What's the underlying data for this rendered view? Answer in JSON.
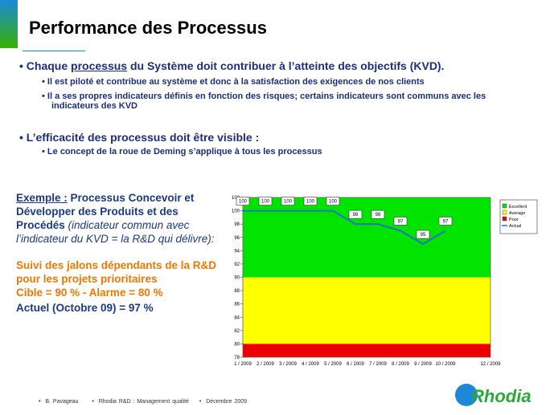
{
  "header": {
    "title": "Performance des Processus"
  },
  "bullets": [
    {
      "parts": [
        "Chaque ",
        "processus",
        " du Système doit contribuer à l’atteinte des objectifs (KVD)."
      ],
      "subs": [
        "Il est piloté et contribue au système et donc à la satisfaction des exigences de nos clients",
        "Il a ses propres indicateurs définis en fonction des risques; certains indicateurs sont communs avec les indicateurs des KVD"
      ]
    },
    {
      "parts": [
        "L’efficacité des processus doit être visible :"
      ],
      "subs": [
        "Le concept de la roue de Deming s’applique à tous les processus"
      ]
    }
  ],
  "example": {
    "label": "Exemple :",
    "title": " Processus Concevoir et Développer des Produits et des Procédés",
    "note": " (indicateur commun avec l’indicateur du KVD = la R&D qui délivre):",
    "follow": "Suivi des jalons dépendants de la R&D pour les projets prioritaires",
    "target": "Cible = 90 % - Alarme = 80 %",
    "actual": "Actuel (Octobre 09) = 97 %"
  },
  "footer": {
    "author": "B. Pavageau",
    "dept": "Rhodia R&D : Management qualité",
    "date": "Décembre 2009",
    "logo": "Rhodia"
  },
  "chart_data": {
    "type": "line",
    "categories": [
      "1 / 2009",
      "2 / 2009",
      "3 / 2009",
      "4 / 2009",
      "5 / 2009",
      "6 / 2009",
      "7 / 2009",
      "8 / 2009",
      "9 / 2009",
      "10 / 2009",
      null,
      "12 / 2009"
    ],
    "series": [
      {
        "name": "Actual",
        "color": "#2a6fc4",
        "values": [
          100,
          100,
          100,
          100,
          100,
          98,
          98,
          97,
          95,
          97,
          null,
          null
        ]
      }
    ],
    "bands": [
      {
        "name": "Excellent",
        "color": "#00e400",
        "from": 90,
        "to": 102
      },
      {
        "name": "Average",
        "color": "#ffff00",
        "from": 80,
        "to": 90
      },
      {
        "name": "Poor",
        "color": "#ee0000",
        "from": 78,
        "to": 80
      }
    ],
    "ylim": [
      78,
      102
    ],
    "yticks": [
      78,
      80,
      82,
      84,
      86,
      88,
      90,
      92,
      94,
      96,
      98,
      100,
      102
    ]
  }
}
